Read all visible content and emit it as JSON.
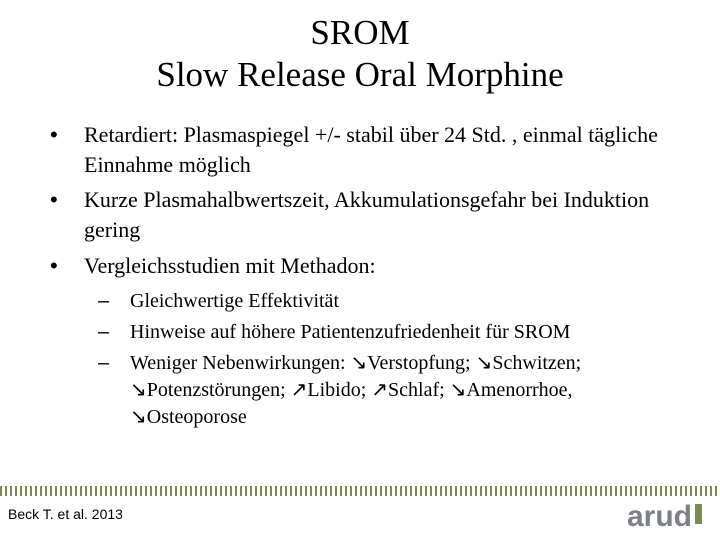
{
  "title": {
    "line1": "SROM",
    "line2": "Slow Release Oral Morphine"
  },
  "bullets": [
    "Retardiert: Plasmaspiegel +/- stabil über 24 Std. , einmal tägliche Einnahme möglich",
    "Kurze Plasmahalbwertszeit, Akkumulationsgefahr bei Induktion gering",
    "Vergleichsstudien mit Methadon:"
  ],
  "subbullets": [
    "Gleichwertige Effektivität",
    "Hinweise auf höhere Patientenzufriedenheit für SROM",
    "Weniger Nebenwirkungen: ↘Verstopfung; ↘Schwitzen; ↘Potenzstörungen; ↗Libido; ↗Schlaf; ↘Amenorrhoe, ↘Osteoporose"
  ],
  "citation": "Beck T. et al. 2013",
  "logo_text": "arud",
  "colors": {
    "text": "#000000",
    "background": "#ffffff",
    "accent": "#7a8b52",
    "logo_gray": "#7d8185"
  },
  "typography": {
    "title_fontsize": 35,
    "bullet_fontsize": 22,
    "subbullet_fontsize": 20,
    "citation_fontsize": 14,
    "title_family": "serif",
    "body_family": "serif",
    "citation_family": "sans-serif"
  }
}
